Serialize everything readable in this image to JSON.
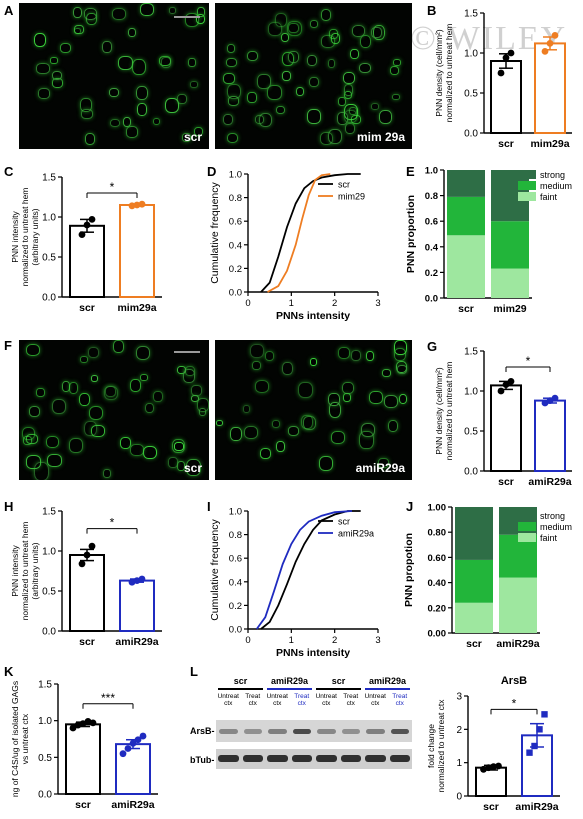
{
  "watermark": "© WILEY",
  "panel_letters": {
    "A": "A",
    "B": "B",
    "C": "C",
    "D": "D",
    "E": "E",
    "F": "F",
    "G": "G",
    "H": "H",
    "I": "I",
    "J": "J",
    "K": "K",
    "L": "L"
  },
  "micro": {
    "a_left": "scr",
    "a_right": "mim 29a",
    "f_left": "scr",
    "f_right": "amiR29a"
  },
  "bar_colors": {
    "scr": "#000000",
    "mim": "#ee7d22",
    "ami": "#1f2bc0"
  },
  "stack_colors": {
    "strong": "#2e6e46",
    "medium": "#22b53a",
    "faint": "#9ee79f"
  },
  "chart_data": [
    {
      "id": "B",
      "type": "bar",
      "categories": [
        "scr",
        "mim29a"
      ],
      "values": [
        0.9,
        1.12
      ],
      "errors": [
        0.09,
        0.08
      ],
      "points": [
        [
          0.75,
          0.94,
          1.0
        ],
        [
          1.02,
          1.12,
          1.22
        ]
      ],
      "ylabel": "PNN density (cell/mm²)\nnormalized to untreat hem",
      "ylim": [
        0,
        1.5
      ],
      "yticks": [
        "0.0",
        "0.5",
        "1.0",
        "1.5"
      ]
    },
    {
      "id": "C",
      "type": "bar",
      "categories": [
        "scr",
        "mim29a"
      ],
      "values": [
        0.89,
        1.15
      ],
      "errors": [
        0.08,
        0.01
      ],
      "points": [
        [
          0.78,
          0.9,
          0.97
        ],
        [
          1.14,
          1.15,
          1.16
        ]
      ],
      "ylabel": "PNN intensity\nnormalized to untreat hem\n(arbitrary units)",
      "ylim": [
        0,
        1.5
      ],
      "yticks": [
        "0.0",
        "0.5",
        "1.0",
        "1.5"
      ],
      "annotation": "*"
    },
    {
      "id": "D",
      "type": "line",
      "xlabel": "PNNs intensity",
      "ylabel": "Cumulative frequency",
      "xlim": [
        0,
        3
      ],
      "ylim": [
        0,
        1
      ],
      "xticks": [
        "0",
        "1",
        "2",
        "3"
      ],
      "yticks": [
        "0.0",
        "0.2",
        "0.4",
        "0.6",
        "0.8",
        "1.0"
      ],
      "series": [
        {
          "name": "scr",
          "color": "#000000",
          "x": [
            0.3,
            0.5,
            0.7,
            0.9,
            1.1,
            1.3,
            1.5,
            1.7,
            2.0,
            2.3,
            2.6
          ],
          "y": [
            0,
            0.08,
            0.3,
            0.55,
            0.75,
            0.88,
            0.94,
            0.97,
            0.99,
            1.0,
            1.0
          ]
        },
        {
          "name": "mim29",
          "color": "#ee7d22",
          "x": [
            0.45,
            0.7,
            0.9,
            1.1,
            1.25,
            1.4,
            1.55,
            1.7,
            1.9
          ],
          "y": [
            0,
            0.05,
            0.18,
            0.4,
            0.62,
            0.82,
            0.95,
            0.99,
            1.0
          ]
        }
      ]
    },
    {
      "id": "E",
      "type": "bar",
      "stacked": true,
      "categories": [
        "scr",
        "mim29"
      ],
      "ylabel": "PNN proportion",
      "ylim": [
        0,
        1
      ],
      "yticks": [
        "0.0",
        "0.2",
        "0.4",
        "0.6",
        "0.8",
        "1.0"
      ],
      "series": [
        {
          "name": "faint",
          "values": [
            0.49,
            0.23
          ]
        },
        {
          "name": "medium",
          "values": [
            0.3,
            0.37
          ]
        },
        {
          "name": "strong",
          "values": [
            0.21,
            0.4
          ]
        }
      ]
    },
    {
      "id": "G",
      "type": "bar",
      "categories": [
        "scr",
        "amiR29a"
      ],
      "values": [
        1.07,
        0.88
      ],
      "errors": [
        0.05,
        0.03
      ],
      "points": [
        [
          1.0,
          1.08,
          1.12
        ],
        [
          0.85,
          0.88,
          0.91
        ]
      ],
      "ylabel": "PNN density (cell/mm²)\nnormalized to untreat hem",
      "ylim": [
        0,
        1.5
      ],
      "yticks": [
        "0.0",
        "0.5",
        "1.0",
        "1.5"
      ],
      "annotation": "*"
    },
    {
      "id": "H",
      "type": "bar",
      "categories": [
        "scr",
        "amiR29a"
      ],
      "values": [
        0.95,
        0.63
      ],
      "errors": [
        0.07,
        0.02
      ],
      "points": [
        [
          0.84,
          0.95,
          1.06
        ],
        [
          0.61,
          0.63,
          0.65
        ]
      ],
      "ylabel": "PNN intensity\nnormalized to untreat hem\n(arbitrary units)",
      "ylim": [
        0,
        1.5
      ],
      "yticks": [
        "0.0",
        "0.5",
        "1.0",
        "1.5"
      ],
      "annotation": "*"
    },
    {
      "id": "I",
      "type": "line",
      "xlabel": "PNNs intensity",
      "ylabel": "Cumulative frequency",
      "xlim": [
        0,
        3
      ],
      "ylim": [
        0,
        1
      ],
      "xticks": [
        "0",
        "1",
        "2",
        "3"
      ],
      "yticks": [
        "0.0",
        "0.2",
        "0.4",
        "0.6",
        "0.8",
        "1.0"
      ],
      "series": [
        {
          "name": "scr",
          "color": "#000000",
          "x": [
            0.3,
            0.5,
            0.7,
            0.9,
            1.1,
            1.3,
            1.5,
            1.7,
            2.0,
            2.3,
            2.6
          ],
          "y": [
            0,
            0.06,
            0.2,
            0.38,
            0.57,
            0.72,
            0.84,
            0.92,
            0.97,
            1.0,
            1.0
          ]
        },
        {
          "name": "amiR29a",
          "color": "#1f2bc0",
          "x": [
            0.2,
            0.4,
            0.6,
            0.8,
            1.0,
            1.2,
            1.4,
            1.7,
            2.0,
            2.4
          ],
          "y": [
            0,
            0.1,
            0.32,
            0.55,
            0.72,
            0.84,
            0.91,
            0.96,
            0.99,
            1.0
          ]
        }
      ]
    },
    {
      "id": "J",
      "type": "bar",
      "stacked": true,
      "categories": [
        "scr",
        "amiR29a"
      ],
      "ylabel": "PNN propotion",
      "ylim": [
        0,
        1
      ],
      "yticks": [
        "0.00",
        "0.20",
        "0.40",
        "0.60",
        "0.80",
        "1.00"
      ],
      "series": [
        {
          "name": "faint",
          "values": [
            0.24,
            0.44
          ]
        },
        {
          "name": "medium",
          "values": [
            0.34,
            0.34
          ]
        },
        {
          "name": "strong",
          "values": [
            0.42,
            0.22
          ]
        }
      ]
    },
    {
      "id": "K",
      "type": "bar",
      "categories": [
        "scr",
        "amiR29a"
      ],
      "values": [
        0.95,
        0.68
      ],
      "errors": [
        0.03,
        0.06
      ],
      "points": [
        [
          0.9,
          0.94,
          0.96,
          0.99,
          0.97
        ],
        [
          0.55,
          0.62,
          0.69,
          0.74,
          0.79
        ]
      ],
      "ylabel": "ng of C4S/ug of isolated GAGs\nvs untreat ctx",
      "ylim": [
        0,
        1.5
      ],
      "yticks": [
        "0.0",
        "0.5",
        "1.0",
        "1.5"
      ],
      "annotation": "***"
    },
    {
      "id": "L",
      "type": "bar",
      "title": "ArsB",
      "categories": [
        "scr",
        "amiR29a"
      ],
      "values": [
        0.85,
        1.82
      ],
      "errors": [
        0.07,
        0.35
      ],
      "points": [
        [
          0.8,
          0.85,
          0.88,
          0.9
        ],
        [
          1.3,
          1.5,
          2.0,
          2.45
        ]
      ],
      "ylabel": "fold change\nnormalized to untreat ctx",
      "ylim": [
        0,
        3
      ],
      "yticks": [
        "0",
        "1",
        "2",
        "3"
      ],
      "annotation": "*"
    }
  ],
  "blot": {
    "groups": [
      "scr",
      "amiR29a",
      "scr",
      "amiR29a"
    ],
    "lanes": [
      "Untreat\nctx",
      "Treat\nctx",
      "Untreat\nctx",
      "Treat\nctx",
      "Untreat\nctx",
      "Treat\nctx",
      "Untreat\nctx",
      "Treat\nctx"
    ],
    "rows": [
      "ArsB-",
      "bTub-"
    ]
  }
}
